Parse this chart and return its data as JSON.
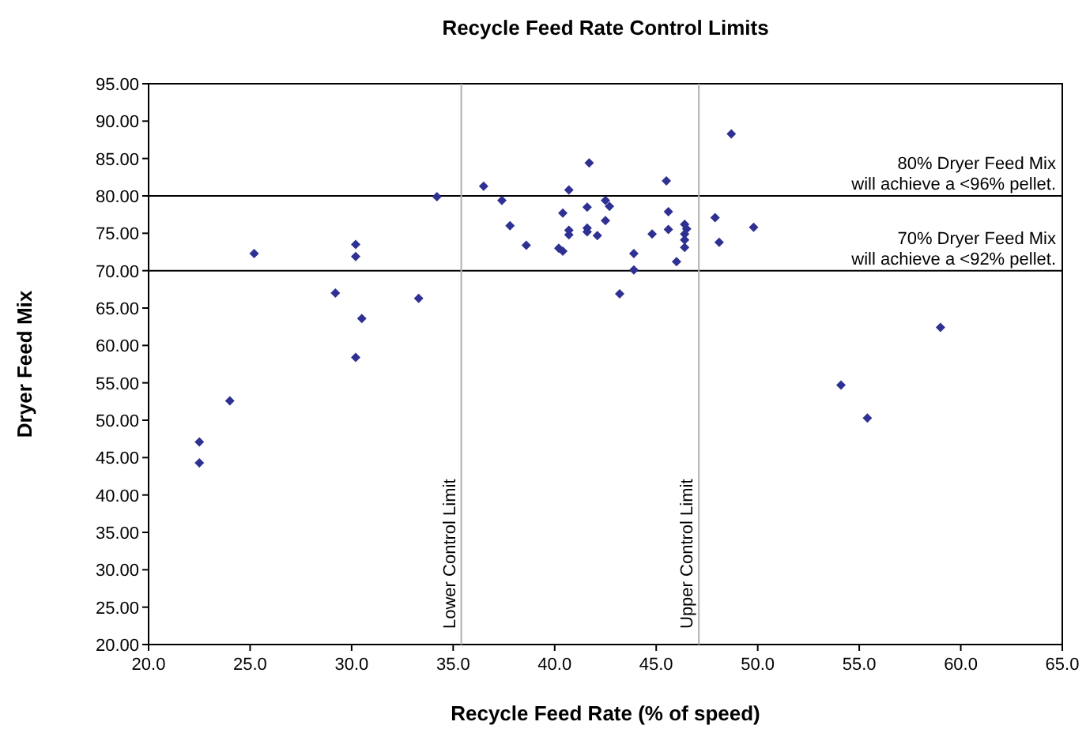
{
  "chart_data": {
    "type": "scatter",
    "title": "Recycle Feed Rate Control Limits",
    "xlabel": "Recycle Feed Rate (% of speed)",
    "ylabel": "Dryer Feed Mix",
    "marker": "diamond",
    "grid": false,
    "xlim": [
      20,
      65
    ],
    "ylim": [
      20,
      95
    ],
    "xticks": [
      {
        "value": 20,
        "label": "20.0"
      },
      {
        "value": 25,
        "label": "25.0"
      },
      {
        "value": 30,
        "label": "30.0"
      },
      {
        "value": 35,
        "label": "35.0"
      },
      {
        "value": 40,
        "label": "40.0"
      },
      {
        "value": 45,
        "label": "45.0"
      },
      {
        "value": 50,
        "label": "50.0"
      },
      {
        "value": 55,
        "label": "55.0"
      },
      {
        "value": 60,
        "label": "60.0"
      },
      {
        "value": 65,
        "label": "65.0"
      }
    ],
    "yticks": [
      {
        "value": 20,
        "label": "20.00"
      },
      {
        "value": 25,
        "label": "25.00"
      },
      {
        "value": 30,
        "label": "30.00"
      },
      {
        "value": 35,
        "label": "35.00"
      },
      {
        "value": 40,
        "label": "40.00"
      },
      {
        "value": 45,
        "label": "45.00"
      },
      {
        "value": 50,
        "label": "50.00"
      },
      {
        "value": 55,
        "label": "55.00"
      },
      {
        "value": 60,
        "label": "60.00"
      },
      {
        "value": 65,
        "label": "65.00"
      },
      {
        "value": 70,
        "label": "70.00"
      },
      {
        "value": 75,
        "label": "75.00"
      },
      {
        "value": 80,
        "label": "80.00"
      },
      {
        "value": 85,
        "label": "85.00"
      },
      {
        "value": 90,
        "label": "90.00"
      },
      {
        "value": 95,
        "label": "95.00"
      }
    ],
    "series": [
      {
        "color": "#2e3192",
        "x": [
          22.5,
          22.5,
          24.0,
          25.2,
          29.2,
          30.2,
          30.2,
          30.5,
          30.2,
          33.3,
          34.2,
          36.5,
          37.4,
          37.8,
          38.6,
          40.2,
          40.4,
          40.4,
          40.7,
          40.7,
          40.7,
          41.7,
          41.6,
          41.6,
          41.6,
          42.1,
          42.5,
          42.7,
          42.5,
          43.2,
          43.9,
          43.9,
          44.8,
          45.5,
          45.6,
          45.6,
          46.0,
          46.4,
          46.5,
          46.4,
          46.4,
          46.4,
          47.9,
          48.1,
          48.7,
          49.8,
          54.1,
          55.4,
          59.0
        ],
        "values": [
          47.1,
          44.3,
          52.6,
          72.3,
          67.0,
          73.5,
          71.9,
          63.6,
          58.4,
          66.3,
          79.9,
          81.3,
          79.4,
          76.0,
          73.4,
          73.0,
          72.6,
          77.7,
          80.8,
          75.4,
          74.8,
          84.4,
          78.5,
          75.7,
          75.2,
          74.7,
          79.4,
          78.6,
          76.7,
          66.9,
          72.3,
          70.1,
          74.9,
          82.0,
          77.9,
          75.5,
          71.2,
          76.2,
          75.6,
          74.9,
          74.1,
          73.1,
          77.1,
          73.8,
          88.3,
          75.8,
          54.7,
          50.3,
          62.4
        ]
      }
    ],
    "ref_lines": [
      {
        "axis": "y",
        "value": 80,
        "label": "80% Dryer Feed Mix\nwill achieve a <96% pellet.",
        "color": "#000000"
      },
      {
        "axis": "y",
        "value": 70,
        "label": "70% Dryer Feed Mix\nwill achieve a <92% pellet.",
        "color": "#000000"
      },
      {
        "axis": "x",
        "value": 35.4,
        "label": "Lower Control Limit",
        "color": "#b0b0b0"
      },
      {
        "axis": "x",
        "value": 47.1,
        "label": "Upper Control Limit",
        "color": "#b0b0b0"
      }
    ]
  }
}
